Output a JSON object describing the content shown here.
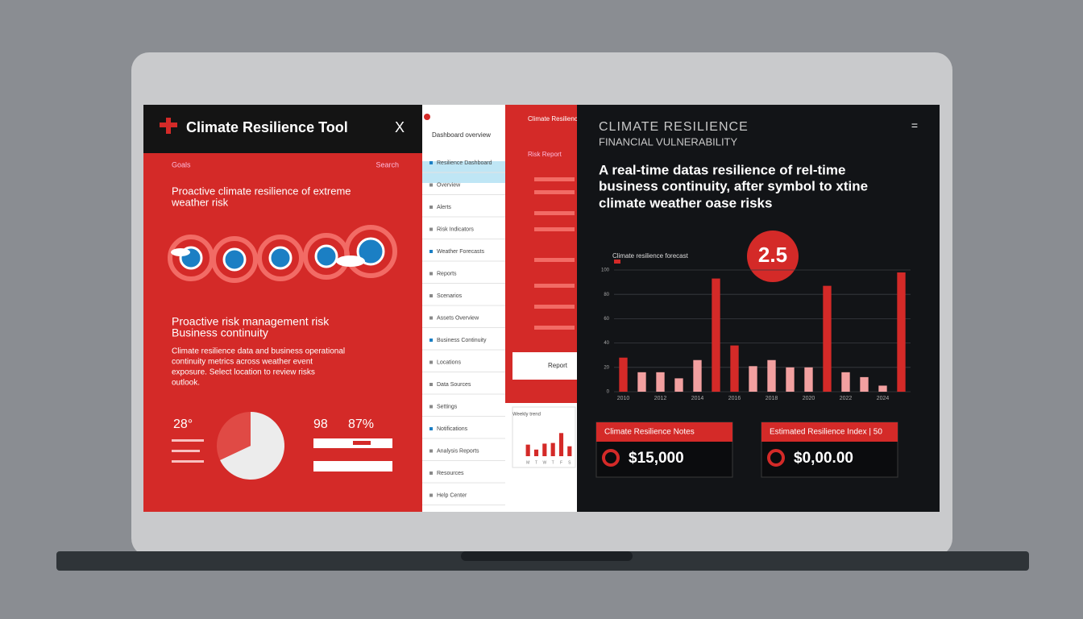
{
  "header": {
    "title": "Climate Resilience Tool",
    "close": "X"
  },
  "left_panel": {
    "nav": [
      "Goals",
      "Search"
    ],
    "heading": [
      "Proactive climate resilience of extreme",
      "weather risk"
    ],
    "section_title": [
      "Proactive risk management risk",
      "Business continuity"
    ],
    "paragraph": [
      "Climate resilience data and business operational",
      "continuity metrics across weather event",
      "exposure. Select location to review risks",
      "outlook."
    ],
    "stats": [
      "28°",
      "98",
      "87%"
    ]
  },
  "sidebar": {
    "title": "Dashboard overview",
    "items": [
      "Resilience Dashboard",
      "Overview",
      "Alerts",
      "Risk Indicators",
      "Weather Forecasts",
      "Reports",
      "Scenarios",
      "Assets Overview",
      "Business Continuity",
      "Locations",
      "Data Sources",
      "Settings",
      "Notifications",
      "Analysis Reports",
      "Resources",
      "Help Center"
    ]
  },
  "report_panel": {
    "title": "Climate Resilience",
    "subtitle": "Risk Report",
    "button": "Report"
  },
  "right_panel": {
    "title": "CLIMATE RESILIENCE",
    "subtitle": "FINANCIAL VULNERABILITY",
    "description": [
      "A real-time datas resilience of rel-time",
      "business continuity, after symbol to xtine",
      "climate weather oase risks"
    ],
    "badge": "2.5",
    "cards": [
      {
        "title": "Climate Resilience Notes",
        "value": "$15,000"
      },
      {
        "title": "Estimated Resilience Index | 50",
        "value": "$0,00.00"
      }
    ]
  },
  "chart_data": [
    {
      "type": "bar",
      "title": "Climate resilience forecast",
      "categories": [
        "2010",
        null,
        "2012",
        null,
        "2014",
        null,
        "2016",
        null,
        "2018",
        null,
        "2020",
        null,
        "2022",
        null,
        "2024",
        null
      ],
      "values": [
        28,
        16,
        16,
        11,
        26,
        93,
        38,
        21,
        26,
        20,
        20,
        87,
        16,
        12,
        5,
        98
      ],
      "colors": [
        "#d42a28",
        "#f2a0a0",
        "#f2a0a0",
        "#f2a0a0",
        "#f2a0a0",
        "#d42a28",
        "#d42a28",
        "#f2a0a0",
        "#f2a0a0",
        "#f2a0a0",
        "#f2a0a0",
        "#d42a28",
        "#f2a0a0",
        "#f2a0a0",
        "#f2a0a0",
        "#d42a28"
      ],
      "ylim": [
        0,
        100
      ],
      "yticks": [
        0,
        20,
        40,
        60,
        80,
        100
      ],
      "grid": true
    },
    {
      "type": "bar",
      "title": "Weekly trend",
      "categories": [
        "M",
        "T",
        "W",
        "T",
        "F",
        "S"
      ],
      "values": [
        35,
        20,
        38,
        40,
        70,
        30
      ],
      "colors": [
        "#d42a28",
        "#d42a28",
        "#d42a28",
        "#d42a28",
        "#d42a28",
        "#d42a28"
      ],
      "ylim": [
        0,
        100
      ]
    },
    {
      "type": "pie",
      "values": [
        68,
        32
      ],
      "colors": [
        "#ececec",
        "#e04a45"
      ]
    }
  ]
}
